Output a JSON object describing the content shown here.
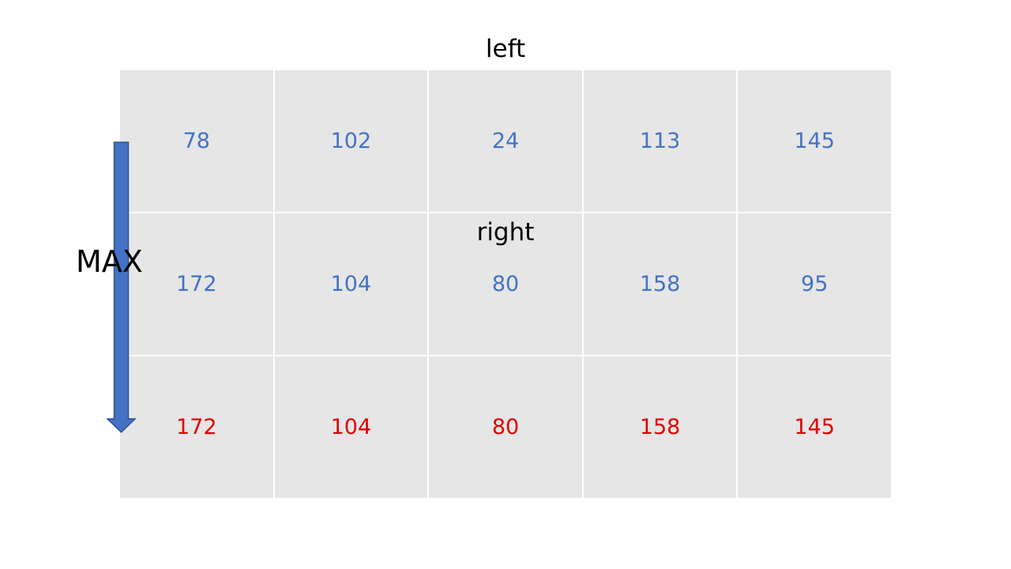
{
  "labels": {
    "top": "left",
    "middle": "right",
    "arrow": "MAX"
  },
  "colors": {
    "input_row_text": "#4472c4",
    "result_row_text": "#e00000",
    "cell_background": "#e6e6e6",
    "arrow_fill": "#4472c4",
    "arrow_stroke": "#2f528f"
  },
  "rows": [
    {
      "role": "left",
      "values": [
        "78",
        "102",
        "24",
        "113",
        "145"
      ]
    },
    {
      "role": "right",
      "values": [
        "172",
        "104",
        "80",
        "158",
        "95"
      ]
    },
    {
      "role": "max",
      "values": [
        "172",
        "104",
        "80",
        "158",
        "145"
      ]
    }
  ]
}
